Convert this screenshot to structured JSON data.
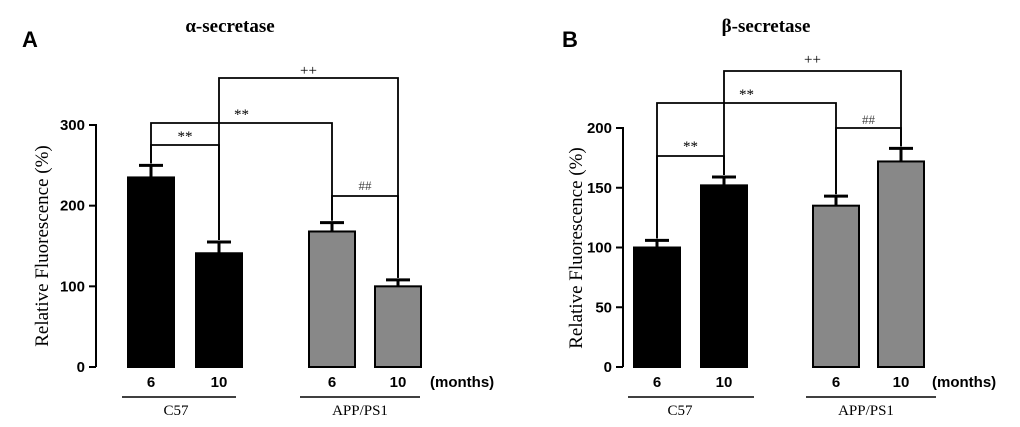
{
  "chart_data": [
    {
      "type": "bar",
      "panel": "A",
      "title": "α-secretase",
      "ylabel": "Relative Fluorescence (%)",
      "ylim": [
        0,
        300
      ],
      "yticks": [
        "0",
        "100",
        "200",
        "300"
      ],
      "categories": [
        "6",
        "10",
        "6",
        "10"
      ],
      "units_label": "(months)",
      "groups": [
        "C57",
        "APP/PS1"
      ],
      "values": [
        235,
        141,
        168,
        100
      ],
      "errors": [
        15,
        14,
        11,
        8
      ],
      "colors": [
        "#000000",
        "#000000",
        "#888888",
        "#888888"
      ],
      "significance": [
        {
          "from": 0,
          "to": 1,
          "label": "**"
        },
        {
          "from": 0,
          "to": 2,
          "label": "**"
        },
        {
          "from": 2,
          "to": 3,
          "label": "##"
        },
        {
          "from": 1,
          "to": 3,
          "label": "++"
        }
      ]
    },
    {
      "type": "bar",
      "panel": "B",
      "title": "β-secretase",
      "ylabel": "Relative Fluorescence (%)",
      "ylim": [
        0,
        200
      ],
      "yticks": [
        "0",
        "50",
        "100",
        "150",
        "200"
      ],
      "categories": [
        "6",
        "10",
        "6",
        "10"
      ],
      "units_label": "(months)",
      "groups": [
        "C57",
        "APP/PS1"
      ],
      "values": [
        100,
        152,
        135,
        172
      ],
      "errors": [
        6,
        7,
        8,
        11
      ],
      "colors": [
        "#000000",
        "#000000",
        "#888888",
        "#888888"
      ],
      "significance": [
        {
          "from": 0,
          "to": 1,
          "label": "**"
        },
        {
          "from": 0,
          "to": 2,
          "label": "**"
        },
        {
          "from": 2,
          "to": 3,
          "label": "##"
        },
        {
          "from": 1,
          "to": 3,
          "label": "++"
        }
      ]
    }
  ]
}
